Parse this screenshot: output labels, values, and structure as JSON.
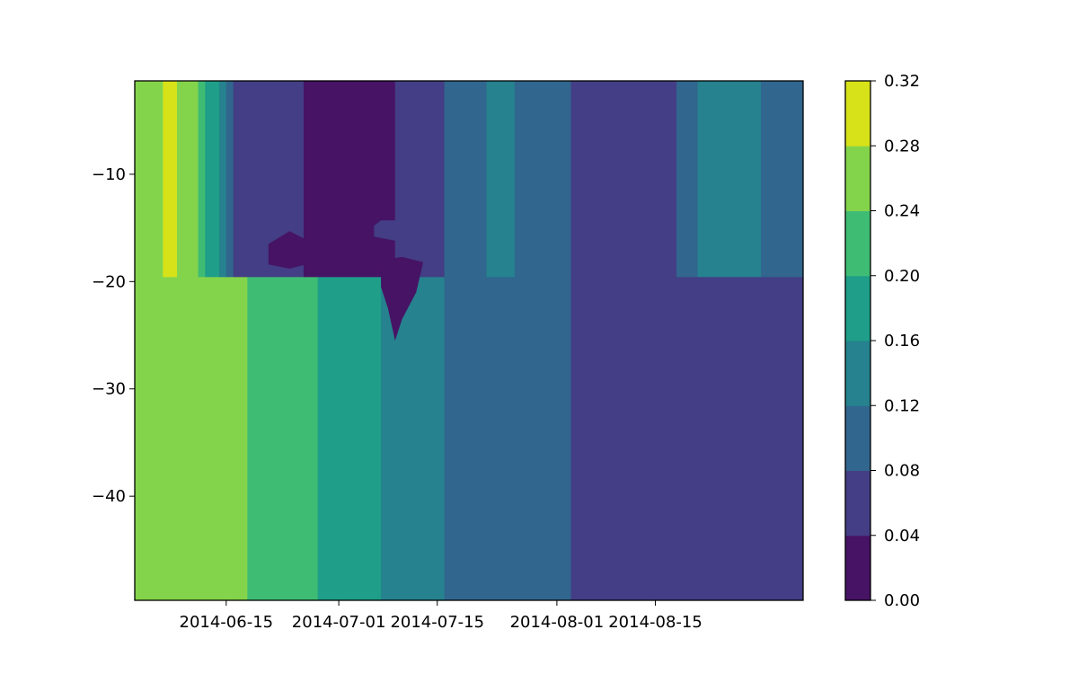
{
  "chart_data": {
    "type": "contourf",
    "title": "",
    "xlabel": "",
    "ylabel": "",
    "x_axis": {
      "type": "date",
      "range": [
        "2014-06-02",
        "2014-09-05"
      ],
      "ticks": [
        "2014-06-15",
        "2014-07-01",
        "2014-07-15",
        "2014-08-01",
        "2014-08-15"
      ]
    },
    "y_axis": {
      "range": [
        -49.7,
        -1.3
      ],
      "ticks": [
        -10,
        -20,
        -30,
        -40
      ],
      "tick_labels": [
        "−10",
        "−20",
        "−30",
        "−40"
      ]
    },
    "colorbar": {
      "levels": [
        0.0,
        0.04,
        0.08,
        0.12,
        0.16,
        0.2,
        0.24,
        0.28,
        0.32
      ],
      "tick_labels": [
        "0.00",
        "0.04",
        "0.08",
        "0.12",
        "0.16",
        "0.20",
        "0.24",
        "0.28",
        "0.32"
      ],
      "colors": [
        "#471365",
        "#433e85",
        "#31668e",
        "#26828e",
        "#1f9e89",
        "#3fbc73",
        "#84d44b",
        "#d8e219"
      ]
    },
    "grid": false,
    "deep_columns": [
      {
        "start": "2014-06-02",
        "end": "2014-06-18",
        "band": 6
      },
      {
        "start": "2014-06-18",
        "end": "2014-06-28",
        "band": 5
      },
      {
        "start": "2014-06-28",
        "end": "2014-07-07",
        "band": 4
      },
      {
        "start": "2014-07-07",
        "end": "2014-07-16",
        "band": 3
      },
      {
        "start": "2014-07-16",
        "end": "2014-08-03",
        "band": 2
      },
      {
        "start": "2014-08-03",
        "end": "2014-09-05",
        "band": 1
      }
    ],
    "surface_columns": [
      {
        "start": "2014-06-02",
        "end": "2014-06-06",
        "band": 6
      },
      {
        "start": "2014-06-06",
        "end": "2014-06-08",
        "band": 7
      },
      {
        "start": "2014-06-08",
        "end": "2014-06-11",
        "band": 6
      },
      {
        "start": "2014-06-11",
        "end": "2014-06-12",
        "band": 5
      },
      {
        "start": "2014-06-12",
        "end": "2014-06-14",
        "band": 4
      },
      {
        "start": "2014-06-14",
        "end": "2014-06-15",
        "band": 3
      },
      {
        "start": "2014-06-15",
        "end": "2014-06-16",
        "band": 2
      },
      {
        "start": "2014-06-16",
        "end": "2014-06-26",
        "band": 1
      },
      {
        "start": "2014-06-26",
        "end": "2014-07-09",
        "band": 0
      },
      {
        "start": "2014-07-09",
        "end": "2014-07-16",
        "band": 1
      },
      {
        "start": "2014-07-16",
        "end": "2014-07-22",
        "band": 2
      },
      {
        "start": "2014-07-22",
        "end": "2014-07-26",
        "band": 3
      },
      {
        "start": "2014-07-26",
        "end": "2014-08-03",
        "band": 2
      },
      {
        "start": "2014-08-03",
        "end": "2014-08-18",
        "band": 1
      },
      {
        "start": "2014-08-18",
        "end": "2014-08-21",
        "band": 2
      },
      {
        "start": "2014-08-21",
        "end": "2014-08-30",
        "band": 3
      },
      {
        "start": "2014-08-30",
        "end": "2014-09-05",
        "band": 2
      }
    ],
    "pockets": [
      {
        "band": 0,
        "points": [
          [
            "2014-06-21",
            -16.5
          ],
          [
            "2014-06-24",
            -15.3
          ],
          [
            "2014-06-27",
            -16.3
          ],
          [
            "2014-06-30",
            -17.3
          ],
          [
            "2014-06-27",
            -18.3
          ],
          [
            "2014-06-24",
            -18.8
          ],
          [
            "2014-06-21",
            -18.4
          ]
        ]
      },
      {
        "band": 0,
        "points": [
          [
            "2014-07-07",
            -18.0
          ],
          [
            "2014-07-10",
            -17.7
          ],
          [
            "2014-07-13",
            -18.2
          ],
          [
            "2014-07-12",
            -21.0
          ],
          [
            "2014-07-10",
            -23.5
          ],
          [
            "2014-07-09",
            -25.5
          ],
          [
            "2014-07-08",
            -22.5
          ],
          [
            "2014-07-07",
            -20.5
          ]
        ]
      },
      {
        "band": 1,
        "points": [
          [
            "2014-07-07",
            -14.3
          ],
          [
            "2014-07-10",
            -14.3
          ],
          [
            "2014-07-11",
            -15.5
          ],
          [
            "2014-07-09",
            -16.2
          ],
          [
            "2014-07-06",
            -15.8
          ],
          [
            "2014-07-06",
            -14.8
          ]
        ]
      }
    ]
  }
}
